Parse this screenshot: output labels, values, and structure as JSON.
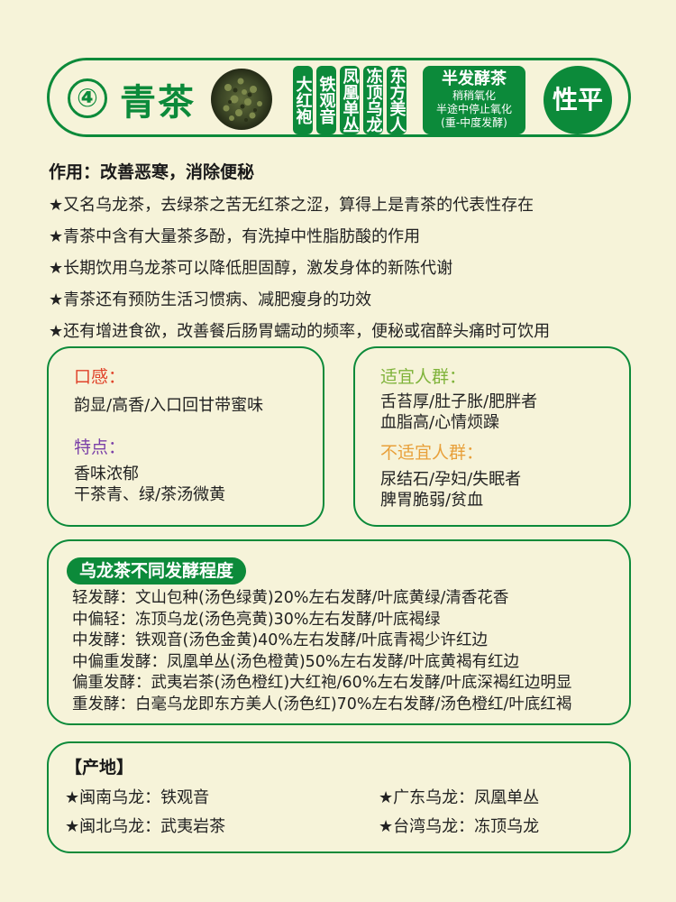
{
  "header": {
    "number": "④",
    "title": "青茶",
    "varieties": [
      "大红袍",
      "铁观音",
      "凤凰单丛",
      "冻顶乌龙",
      "东方美人"
    ],
    "ferment_title": "半发酵茶",
    "ferment_lines": [
      "稍稍氧化",
      "半途中停止氧化",
      "(重-中度发酵)"
    ],
    "nature": "性平"
  },
  "effect": "作用：改善恶寒，消除便秘",
  "bullets": [
    "★又名乌龙茶，去绿茶之苦无红茶之涩，算得上是青茶的代表性存在",
    "★青茶中含有大量茶多酚，有洗掉中性脂肪酸的作用",
    "★长期饮用乌龙茶可以降低胆固醇，激发身体的新陈代谢",
    "★青茶还有预防生活习惯病、减肥瘦身的功效",
    "★还有增进食欲，改善餐后肠胃蠕动的频率，便秘或宿醉头痛时可饮用"
  ],
  "taste": {
    "label": "口感：",
    "text": "韵显/高香/入口回甘带蜜味",
    "feature_label": "特点：",
    "feature_lines": [
      "香味浓郁",
      "干茶青、绿/茶汤微黄"
    ]
  },
  "people": {
    "suitable_label": "适宜人群：",
    "suitable_lines": [
      "舌苔厚/肚子胀/肥胖者",
      "血脂高/心情烦躁"
    ],
    "unsuitable_label": "不适宜人群：",
    "unsuitable_lines": [
      "尿结石/孕妇/失眠者",
      "脾胃脆弱/贫血"
    ]
  },
  "levels": {
    "title": "乌龙茶不同发酵程度",
    "items": [
      "轻发酵：文山包种(汤色绿黄)20%左右发酵/叶底黄绿/清香花香",
      "中偏轻：冻顶乌龙(汤色亮黄)30%左右发酵/叶底褐绿",
      "中发酵：铁观音(汤色金黄)40%左右发酵/叶底青褐少许红边",
      "中偏重发酵：凤凰单丛(汤色橙黄)50%左右发酵/叶底黄褐有红边",
      "偏重发酵：武夷岩茶(汤色橙红)大红袍/60%左右发酵/叶底深褐红边明显",
      "重发酵：白毫乌龙即东方美人(汤色红)70%左右发酵/汤色橙红/叶底红褐"
    ]
  },
  "origin": {
    "title": "【产地】",
    "items": [
      "★闽南乌龙：铁观音",
      "★广东乌龙：凤凰单丛",
      "★闽北乌龙：武夷岩茶",
      "★台湾乌龙：冻顶乌龙"
    ]
  },
  "colors": {
    "accent": "#0c8a3a",
    "background": "#f6f3d9",
    "taste_label": "#e0432a",
    "feature_label": "#7a3fa8",
    "suitable_label": "#7fb33a",
    "unsuitable_label": "#e8a03a"
  }
}
